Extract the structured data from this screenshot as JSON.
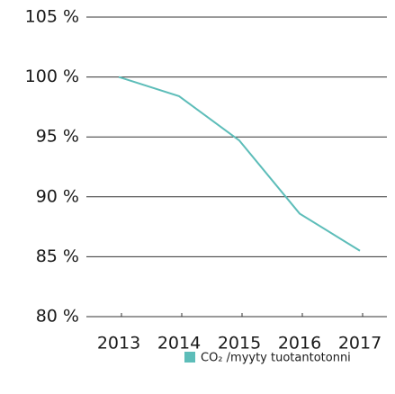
{
  "chart_data": {
    "type": "line",
    "categories": [
      "2013",
      "2014",
      "2015",
      "2016",
      "2017"
    ],
    "series": [
      {
        "name": "CO₂ /myyty tuotantotonni",
        "color": "#5dbdb9",
        "values": [
          100,
          98.4,
          94.7,
          88.6,
          85.5
        ]
      }
    ],
    "ylim": [
      80,
      105
    ],
    "yticks": [
      {
        "value": 80,
        "label": "80 %"
      },
      {
        "value": 85,
        "label": "85 %"
      },
      {
        "value": 90,
        "label": "90 %"
      },
      {
        "value": 95,
        "label": "95 %"
      },
      {
        "value": 100,
        "label": "100 %"
      },
      {
        "value": 105,
        "label": "105 %"
      }
    ],
    "grid": true,
    "legend": "bottom-right"
  }
}
